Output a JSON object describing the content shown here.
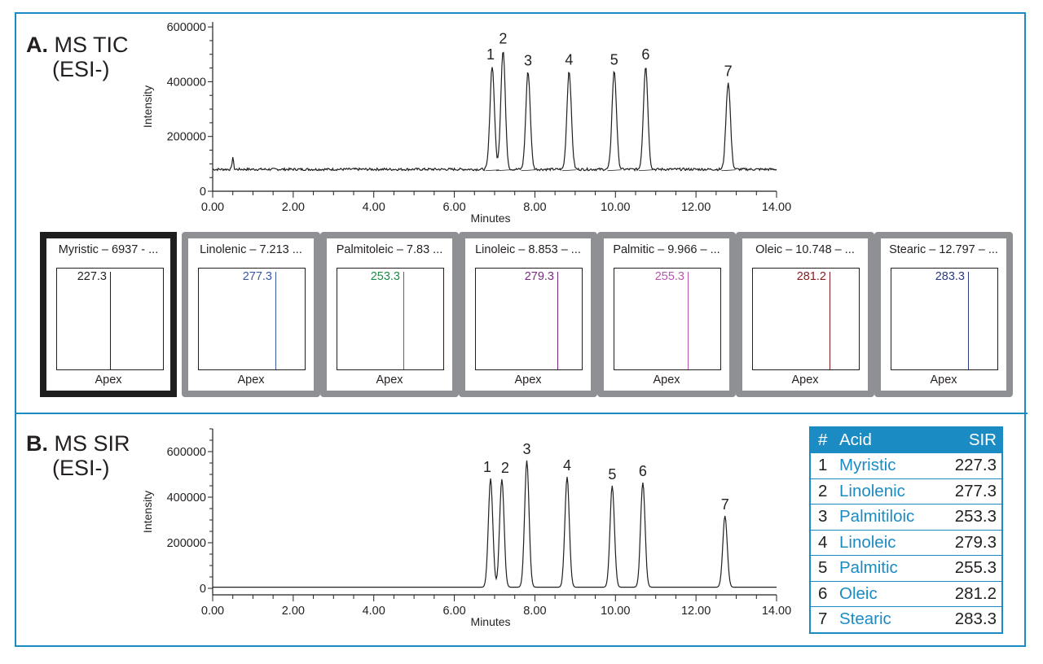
{
  "panel_a": {
    "letter": "A.",
    "title": "MS TIC",
    "subtitle": "(ESI-)"
  },
  "panel_b": {
    "letter": "B.",
    "title": "MS SIR",
    "subtitle": "(ESI-)"
  },
  "spectra": [
    {
      "title": "Myristic – 6937 - ...",
      "mz": "227.3",
      "apex": "Apex",
      "color": "#231f20",
      "selected": true
    },
    {
      "title": "Linolenic – 7.213 ...",
      "mz": "277.3",
      "apex": "Apex",
      "color": "#3a5aa0",
      "selected": false
    },
    {
      "title": "Palmitoleic – 7.83 ...",
      "mz": "253.3",
      "apex": "Apex",
      "color": "#1f8a4a",
      "selected": false
    },
    {
      "title": "Linoleic – 8.853 – ...",
      "mz": "279.3",
      "apex": "Apex",
      "color": "#7a2a80",
      "selected": false
    },
    {
      "title": "Palmitic – 9.966 – ...",
      "mz": "255.3",
      "apex": "Apex",
      "color": "#b755b0",
      "selected": false
    },
    {
      "title": "Oleic – 10.748 – ...",
      "mz": "281.2",
      "apex": "Apex",
      "color": "#8a1d22",
      "selected": false
    },
    {
      "title": "Stearic – 12.797 – ...",
      "mz": "283.3",
      "apex": "Apex",
      "color": "#2c3a80",
      "selected": false
    }
  ],
  "table": {
    "headers": [
      "#",
      "Acid",
      "SIR"
    ],
    "rows": [
      {
        "num": "1",
        "acid": "Myristic",
        "sir": "227.3"
      },
      {
        "num": "2",
        "acid": "Linolenic",
        "sir": "277.3"
      },
      {
        "num": "3",
        "acid": "Palmitiloic",
        "sir": "253.3"
      },
      {
        "num": "4",
        "acid": "Linoleic",
        "sir": "279.3"
      },
      {
        "num": "5",
        "acid": "Palmitic",
        "sir": "255.3"
      },
      {
        "num": "6",
        "acid": "Oleic",
        "sir": "281.2"
      },
      {
        "num": "7",
        "acid": "Stearic",
        "sir": "283.3"
      }
    ]
  },
  "colors": {
    "frame": "#1b8bc4",
    "table_header_bg": "#1b8bc4",
    "acid_text": "#1b8bc4",
    "trace": "#231f20",
    "card_border": "#8e9094",
    "card_border_selected": "#1e1e1e"
  },
  "chart_data": [
    {
      "type": "line",
      "title": "A. MS TIC (ESI-)",
      "xlabel": "Minutes",
      "ylabel": "Intensity",
      "xlim": [
        0,
        14
      ],
      "ylim": [
        0,
        600000
      ],
      "x_ticks": [
        "0.00",
        "2.00",
        "4.00",
        "6.00",
        "8.00",
        "10.00",
        "12.00",
        "14.00"
      ],
      "y_ticks": [
        "0",
        "200000",
        "400000",
        "600000"
      ],
      "baseline": 80000,
      "minor_peak": {
        "x": 0.5,
        "y": 125000
      },
      "peaks": [
        {
          "label": "1",
          "x": 6.94,
          "y": 457000
        },
        {
          "label": "2",
          "x": 7.21,
          "y": 516000
        },
        {
          "label": "3",
          "x": 7.83,
          "y": 436000
        },
        {
          "label": "4",
          "x": 8.85,
          "y": 439000
        },
        {
          "label": "5",
          "x": 9.97,
          "y": 439000
        },
        {
          "label": "6",
          "x": 10.75,
          "y": 457000
        },
        {
          "label": "7",
          "x": 12.8,
          "y": 397000
        }
      ],
      "grid": false
    },
    {
      "type": "line",
      "title": "B. MS SIR (ESI-)",
      "xlabel": "Minutes",
      "ylabel": "Intensity",
      "xlim": [
        0,
        14
      ],
      "ylim": [
        0,
        700000
      ],
      "x_ticks": [
        "0.00",
        "2.00",
        "4.00",
        "6.00",
        "8.00",
        "10.00",
        "12.00",
        "14.00"
      ],
      "y_ticks": [
        "0",
        "200000",
        "400000",
        "600000"
      ],
      "baseline": 5000,
      "peaks": [
        {
          "label": "1",
          "x": 6.9,
          "y": 482000
        },
        {
          "label": "2",
          "x": 7.18,
          "y": 479000
        },
        {
          "label": "3",
          "x": 7.8,
          "y": 561000
        },
        {
          "label": "4",
          "x": 8.8,
          "y": 489000
        },
        {
          "label": "5",
          "x": 9.92,
          "y": 450000
        },
        {
          "label": "6",
          "x": 10.68,
          "y": 464000
        },
        {
          "label": "7",
          "x": 12.72,
          "y": 318000
        }
      ],
      "grid": false
    },
    {
      "type": "table",
      "title": "SIR channels",
      "columns": [
        "#",
        "Acid",
        "SIR"
      ],
      "rows": [
        [
          "1",
          "Myristic",
          "227.3"
        ],
        [
          "2",
          "Linolenic",
          "277.3"
        ],
        [
          "3",
          "Palmitiloic",
          "253.3"
        ],
        [
          "4",
          "Linoleic",
          "279.3"
        ],
        [
          "5",
          "Palmitic",
          "255.3"
        ],
        [
          "6",
          "Oleic",
          "281.2"
        ],
        [
          "7",
          "Stearic",
          "283.3"
        ]
      ]
    }
  ]
}
